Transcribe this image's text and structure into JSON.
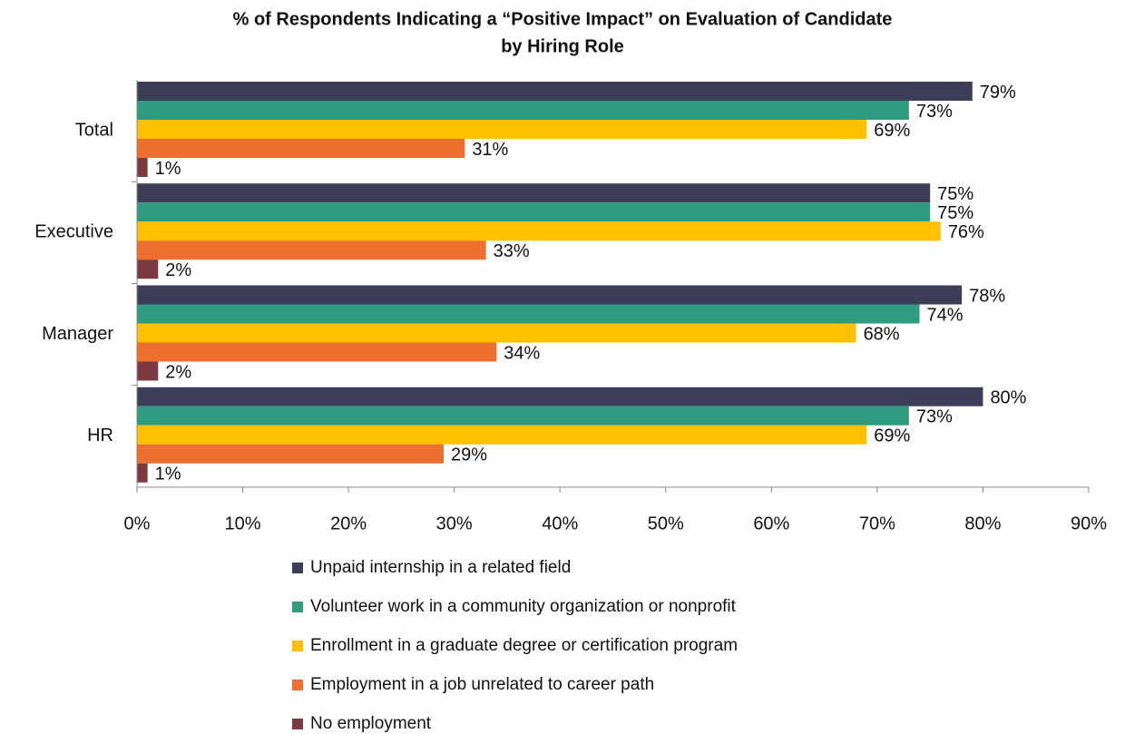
{
  "chart_data": {
    "type": "bar",
    "orientation": "horizontal",
    "title": [
      "% of Respondents Indicating a “Positive Impact” on Evaluation of Candidate",
      "by Hiring Role"
    ],
    "categories": [
      "Total",
      "Executive",
      "Manager",
      "HR"
    ],
    "series": [
      {
        "name": "Unpaid internship in a related field",
        "color": "#3b3e56",
        "values": [
          79,
          75,
          78,
          80
        ],
        "value_labels": [
          "79%",
          "75%",
          "78%",
          "80%"
        ]
      },
      {
        "name": "Volunteer work in a community organization or nonprofit",
        "color": "#2e9a7e",
        "values": [
          73,
          75,
          74,
          73
        ],
        "value_labels": [
          "73%",
          "75%",
          "74%",
          "73%"
        ]
      },
      {
        "name": "Enrollment in a graduate degree or certification program",
        "color": "#ffc000",
        "values": [
          69,
          76,
          68,
          69
        ],
        "value_labels": [
          "69%",
          "76%",
          "68%",
          "69%"
        ]
      },
      {
        "name": "Employment in a job unrelated to career path",
        "color": "#ed6f2f",
        "values": [
          31,
          33,
          34,
          29
        ],
        "value_labels": [
          "31%",
          "33%",
          "34%",
          "29%"
        ]
      },
      {
        "name": "No employment",
        "color": "#7a3a40",
        "values": [
          1,
          2,
          2,
          1
        ],
        "value_labels": [
          "1%",
          "2%",
          "2%",
          "1%"
        ]
      }
    ],
    "xlim": [
      0,
      90
    ],
    "xticks": [
      {
        "value": 0,
        "label": "0%"
      },
      {
        "value": 10,
        "label": "10%"
      },
      {
        "value": 20,
        "label": "20%"
      },
      {
        "value": 30,
        "label": "30%"
      },
      {
        "value": 40,
        "label": "40%"
      },
      {
        "value": 50,
        "label": "50%"
      },
      {
        "value": 60,
        "label": "60%"
      },
      {
        "value": 70,
        "label": "70%"
      },
      {
        "value": 80,
        "label": "80%"
      },
      {
        "value": 90,
        "label": "90%"
      }
    ],
    "grid": false,
    "legend": "bottom"
  }
}
